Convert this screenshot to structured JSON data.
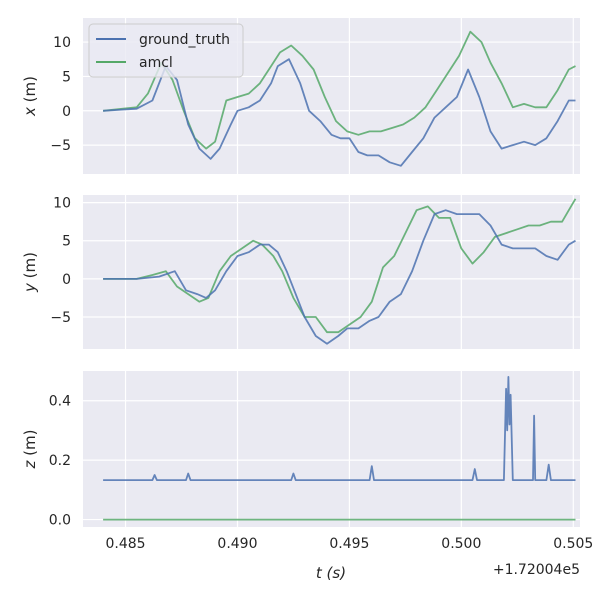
{
  "chart_data": {
    "type": "line",
    "x_offset_label": "+1.72004e5",
    "xlabel": "t (s)",
    "xlim": [
      172004.4831,
      172004.5053
    ],
    "xticks": [
      172004.485,
      172004.49,
      172004.495,
      172004.5,
      172004.505
    ],
    "xtick_labels": [
      "0.485",
      "0.490",
      "0.495",
      "0.500",
      "0.505"
    ],
    "legend": {
      "placement": "top-left",
      "entries": [
        "ground_truth",
        "amcl"
      ]
    },
    "colors": {
      "ground_truth": "#4c72b0",
      "amcl": "#55a868",
      "axes_bg": "#eaeaf2",
      "grid": "#ffffff"
    },
    "grid": true,
    "panels": [
      {
        "ylabel": "x (m)",
        "ylim": [
          -9.2,
          13.5
        ],
        "yticks": [
          -5,
          0,
          5,
          10
        ],
        "ytick_labels": [
          "−5",
          "0",
          "5",
          "10"
        ],
        "series": [
          {
            "name": "ground_truth",
            "x": [
              172004.484,
              172004.4855,
              172004.4862,
              172004.4868,
              172004.4873,
              172004.4878,
              172004.4883,
              172004.4888,
              172004.4892,
              172004.4897,
              172004.49,
              172004.4905,
              172004.491,
              172004.4915,
              172004.4918,
              172004.4923,
              172004.4928,
              172004.4932,
              172004.4937,
              172004.4942,
              172004.4946,
              172004.495,
              172004.4954,
              172004.4958,
              172004.4963,
              172004.4968,
              172004.4973,
              172004.4978,
              172004.4983,
              172004.4988,
              172004.4993,
              172004.4998,
              172004.5003,
              172004.5008,
              172004.5013,
              172004.5018,
              172004.5023,
              172004.5028,
              172004.5033,
              172004.5038,
              172004.5043,
              172004.5048,
              172004.5051
            ],
            "y": [
              0,
              0.3,
              1.5,
              6.5,
              4.5,
              -2,
              -5.5,
              -7,
              -5.5,
              -2,
              0,
              0.5,
              1.5,
              4,
              6.5,
              7.5,
              4,
              0,
              -1.5,
              -3.5,
              -4,
              -4,
              -6,
              -6.5,
              -6.5,
              -7.5,
              -8,
              -6,
              -4,
              -1,
              0.5,
              2,
              6,
              2,
              -3,
              -5.5,
              -5,
              -4.5,
              -5,
              -4,
              -1.5,
              1.5,
              1.5
            ]
          },
          {
            "name": "amcl",
            "x": [
              172004.484,
              172004.4855,
              172004.486,
              172004.4866,
              172004.4871,
              172004.4876,
              172004.4881,
              172004.4886,
              172004.489,
              172004.4895,
              172004.49,
              172004.4905,
              172004.491,
              172004.4915,
              172004.4919,
              172004.4924,
              172004.4929,
              172004.4934,
              172004.4939,
              172004.4944,
              172004.4949,
              172004.4954,
              172004.4959,
              172004.4964,
              172004.4969,
              172004.4974,
              172004.4979,
              172004.4984,
              172004.4989,
              172004.4994,
              172004.4999,
              172004.5004,
              172004.5009,
              172004.5013,
              172004.5018,
              172004.5023,
              172004.5028,
              172004.5033,
              172004.5038,
              172004.5043,
              172004.5048,
              172004.5051
            ],
            "y": [
              0,
              0.5,
              2.5,
              7,
              4.5,
              0,
              -4,
              -5.5,
              -4.5,
              1.5,
              2,
              2.5,
              4,
              6.5,
              8.5,
              9.5,
              8,
              6,
              2,
              -1.5,
              -3,
              -3.5,
              -3,
              -3,
              -2.5,
              -2,
              -1,
              0.5,
              3,
              5.5,
              8,
              11.5,
              10,
              7,
              4,
              0.5,
              1,
              0.5,
              0.5,
              3,
              6,
              6.5
            ]
          }
        ]
      },
      {
        "ylabel": "y (m)",
        "ylim": [
          -9.2,
          11
        ],
        "yticks": [
          -5,
          0,
          5,
          10
        ],
        "ytick_labels": [
          "−5",
          "0",
          "5",
          "10"
        ],
        "series": [
          {
            "name": "ground_truth",
            "x": [
              172004.484,
              172004.4855,
              172004.4865,
              172004.4872,
              172004.4877,
              172004.4882,
              172004.4886,
              172004.489,
              172004.4895,
              172004.49,
              172004.4905,
              172004.491,
              172004.4914,
              172004.4918,
              172004.4922,
              172004.4926,
              172004.493,
              172004.4935,
              172004.494,
              172004.4945,
              172004.4949,
              172004.4954,
              172004.4959,
              172004.4963,
              172004.4968,
              172004.4973,
              172004.4978,
              172004.4983,
              172004.4988,
              172004.4993,
              172004.4998,
              172004.5003,
              172004.5008,
              172004.5013,
              172004.5018,
              172004.5023,
              172004.5028,
              172004.5033,
              172004.5038,
              172004.5043,
              172004.5048,
              172004.5051
            ],
            "y": [
              0,
              0,
              0.3,
              1,
              -1.5,
              -2,
              -2.5,
              -1.5,
              1,
              3,
              3.5,
              4.5,
              4.5,
              3.5,
              1,
              -2,
              -5,
              -7.5,
              -8.5,
              -7.5,
              -6.5,
              -6.5,
              -5.5,
              -5,
              -3,
              -2,
              1,
              5,
              8.5,
              9,
              8.5,
              8.5,
              8.5,
              7,
              4.5,
              4,
              4,
              4,
              3,
              2.5,
              4.5,
              5
            ]
          },
          {
            "name": "amcl",
            "x": [
              172004.484,
              172004.4855,
              172004.4862,
              172004.4868,
              172004.4873,
              172004.4878,
              172004.4883,
              172004.4887,
              172004.4892,
              172004.4897,
              172004.4902,
              172004.4907,
              172004.4911,
              172004.4916,
              172004.492,
              172004.4925,
              172004.493,
              172004.4935,
              172004.494,
              172004.4945,
              172004.495,
              172004.4955,
              172004.496,
              172004.4965,
              172004.497,
              172004.4975,
              172004.498,
              172004.4985,
              172004.499,
              172004.4995,
              172004.5,
              172004.5005,
              172004.501,
              172004.5015,
              172004.502,
              172004.5025,
              172004.503,
              172004.5035,
              172004.504,
              172004.5045,
              172004.5048,
              172004.5051
            ],
            "y": [
              0,
              0,
              0.5,
              1,
              -1,
              -2,
              -3,
              -2.5,
              1,
              3,
              4,
              5,
              4.5,
              3,
              1,
              -2.5,
              -5,
              -5,
              -7,
              -7,
              -6,
              -5,
              -3,
              1.5,
              3,
              6,
              9,
              9.5,
              8,
              8,
              4,
              2,
              3.5,
              5.5,
              6,
              6.5,
              7,
              7,
              7.5,
              7.5,
              9,
              10.5
            ]
          }
        ]
      },
      {
        "ylabel": "z (m)",
        "ylim": [
          -0.025,
          0.5
        ],
        "yticks": [
          0,
          0.2,
          0.4
        ],
        "ytick_labels": [
          "0.0",
          "0.2",
          "0.4"
        ],
        "series": [
          {
            "name": "ground_truth",
            "x": [
              172004.484,
              172004.4862,
              172004.4863,
              172004.4864,
              172004.4877,
              172004.4878,
              172004.4879,
              172004.4924,
              172004.4925,
              172004.4926,
              172004.4959,
              172004.496,
              172004.4961,
              172004.5005,
              172004.5006,
              172004.5007,
              172004.5019,
              172004.502,
              172004.50205,
              172004.5021,
              172004.50215,
              172004.5022,
              172004.5023,
              172004.5032,
              172004.50325,
              172004.5033,
              172004.5038,
              172004.5039,
              172004.504,
              172004.5051
            ],
            "y": [
              0.133,
              0.133,
              0.15,
              0.133,
              0.133,
              0.155,
              0.133,
              0.133,
              0.155,
              0.133,
              0.133,
              0.18,
              0.133,
              0.133,
              0.17,
              0.133,
              0.133,
              0.44,
              0.3,
              0.48,
              0.32,
              0.42,
              0.133,
              0.133,
              0.35,
              0.133,
              0.133,
              0.185,
              0.133,
              0.133
            ]
          },
          {
            "name": "amcl",
            "x": [
              172004.484,
              172004.5051
            ],
            "y": [
              0,
              0
            ]
          }
        ]
      }
    ]
  }
}
